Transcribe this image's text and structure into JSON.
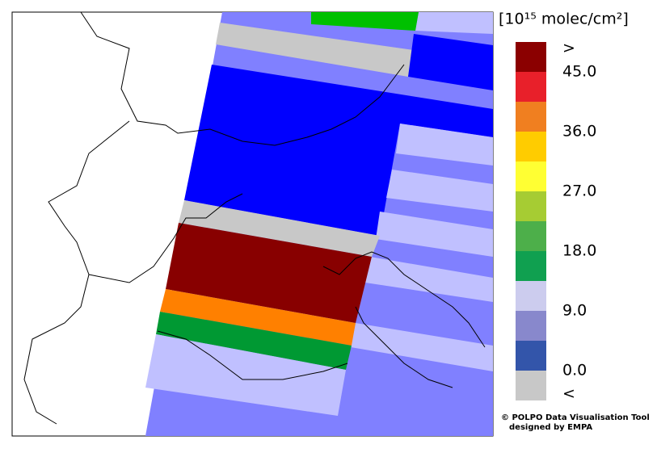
{
  "unit_label": "[10¹⁵ molec/cm²]",
  "colorbar": {
    "colors": [
      "#8b0000",
      "#e8202a",
      "#f07f20",
      "#ffcc00",
      "#ffff33",
      "#a6cc33",
      "#4daf4a",
      "#10a050",
      "#ccccee",
      "#8888cc",
      "#3355aa",
      "#c8c8c8"
    ],
    "labels": [
      ">",
      "45.0",
      "36.0",
      "27.0",
      "18.0",
      "9.0",
      "0.0",
      "<"
    ]
  },
  "credit": [
    "© POLPO Data Visualisation Tool",
    "designed by EMPA"
  ]
}
